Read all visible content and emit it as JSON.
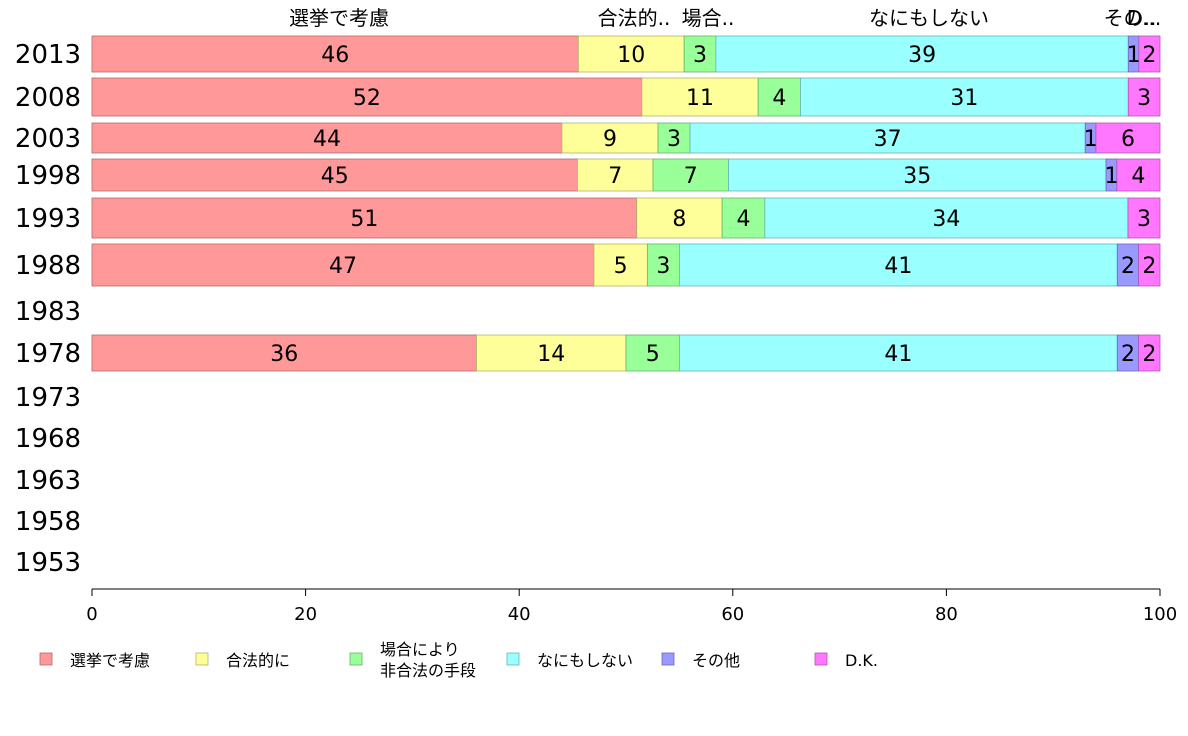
{
  "chart_data": {
    "type": "bar",
    "orientation": "horizontal",
    "stacked": true,
    "title": "",
    "xlabel": "",
    "ylabel": "",
    "xlim": [
      0,
      100
    ],
    "x_ticks": [
      "0",
      "20",
      "40",
      "60",
      "80",
      "100"
    ],
    "categories": [
      "2013",
      "2008",
      "2003",
      "1998",
      "1993",
      "1988",
      "1983",
      "1978",
      "1973",
      "1968",
      "1963",
      "1958",
      "1953"
    ],
    "top_headers": [
      "選挙で考慮",
      "合法的..",
      "場合..",
      "なにもしない",
      "その..",
      "D..."
    ],
    "series": [
      {
        "name": "選挙で考慮",
        "color": "#ff9999",
        "values": [
          46,
          52,
          44,
          45,
          51,
          47,
          null,
          36,
          null,
          null,
          null,
          null,
          null
        ]
      },
      {
        "name": "合法的に",
        "color": "#ffff99",
        "values": [
          10,
          11,
          9,
          7,
          8,
          5,
          null,
          14,
          null,
          null,
          null,
          null,
          null
        ]
      },
      {
        "name": "場合により\n非合法の手段",
        "color": "#99ff99",
        "values": [
          3,
          4,
          3,
          7,
          4,
          3,
          null,
          5,
          null,
          null,
          null,
          null,
          null
        ]
      },
      {
        "name": "なにもしない",
        "color": "#99ffff",
        "values": [
          39,
          31,
          37,
          35,
          34,
          41,
          null,
          41,
          null,
          null,
          null,
          null,
          null
        ]
      },
      {
        "name": "その他",
        "color": "#9999ff",
        "values": [
          1,
          0,
          1,
          1,
          0,
          2,
          null,
          2,
          null,
          null,
          null,
          null,
          null
        ]
      },
      {
        "name": "D.K.",
        "color": "#ff77ff",
        "values": [
          2,
          3,
          6,
          4,
          3,
          2,
          null,
          2,
          null,
          null,
          null,
          null,
          null
        ]
      }
    ],
    "segment_labels": [
      [
        "46",
        "10",
        "3",
        "39",
        "1",
        "2"
      ],
      [
        "52",
        "11",
        "4",
        "31",
        "",
        "3"
      ],
      [
        "44",
        "9",
        "3",
        "37",
        "1",
        "6"
      ],
      [
        "45",
        "7",
        "7",
        "35",
        "1",
        "4"
      ],
      [
        "51",
        "8",
        "4",
        "34",
        "",
        "3"
      ],
      [
        "47",
        "5",
        "3",
        "41",
        "2",
        "2"
      ],
      [
        "",
        "",
        "",
        "",
        "",
        ""
      ],
      [
        "36",
        "14",
        "5",
        "41",
        "2",
        "2"
      ],
      [
        "",
        "",
        "",
        "",
        "",
        ""
      ],
      [
        "",
        "",
        "",
        "",
        "",
        ""
      ],
      [
        "",
        "",
        "",
        "",
        "",
        ""
      ],
      [
        "",
        "",
        "",
        "",
        "",
        ""
      ],
      [
        "",
        "",
        "",
        "",
        "",
        ""
      ]
    ],
    "grid": false,
    "legend_position": "bottom"
  }
}
